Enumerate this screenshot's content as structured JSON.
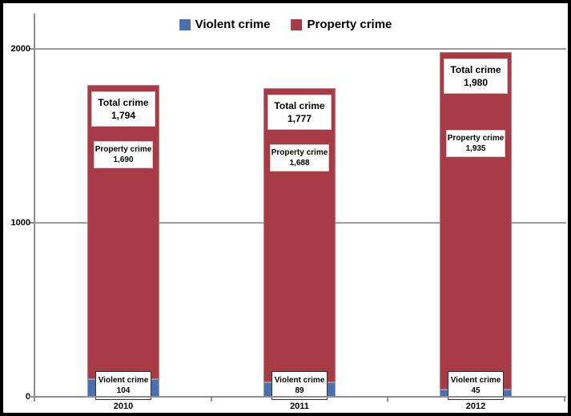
{
  "chart_data": {
    "type": "bar",
    "stacked": true,
    "title": "",
    "categories": [
      "2010",
      "2011",
      "2012"
    ],
    "series": [
      {
        "name": "Violent crime",
        "color": "#4A6FB3",
        "values": [
          104,
          89,
          45
        ]
      },
      {
        "name": "Property crime",
        "color": "#A93B47",
        "values": [
          1690,
          1688,
          1935
        ]
      }
    ],
    "totals": [
      1794,
      1777,
      1980
    ],
    "totals_fmt": [
      "1,794",
      "1,777",
      "1,980"
    ],
    "series_fmt": {
      "violent": [
        "104",
        "89",
        "45"
      ],
      "property": [
        "1,690",
        "1,688",
        "1,935"
      ]
    },
    "label_titles": {
      "total": "Total crime",
      "property": "Property crime",
      "violent": "Violent crime"
    },
    "y_axis": {
      "ticks": [
        "0",
        "1000",
        "2000"
      ],
      "max": 2200,
      "major_unit": 1000
    },
    "legend": {
      "position": "top",
      "items": [
        "Violent crime",
        "Property crime"
      ]
    },
    "grid": true
  },
  "colors": {
    "violent": "#4A6FB3",
    "property": "#A93B47",
    "gridline": "#9b9b9b",
    "axis": "#8e8e8e",
    "frame": "#000000",
    "background": "#ffffff"
  }
}
